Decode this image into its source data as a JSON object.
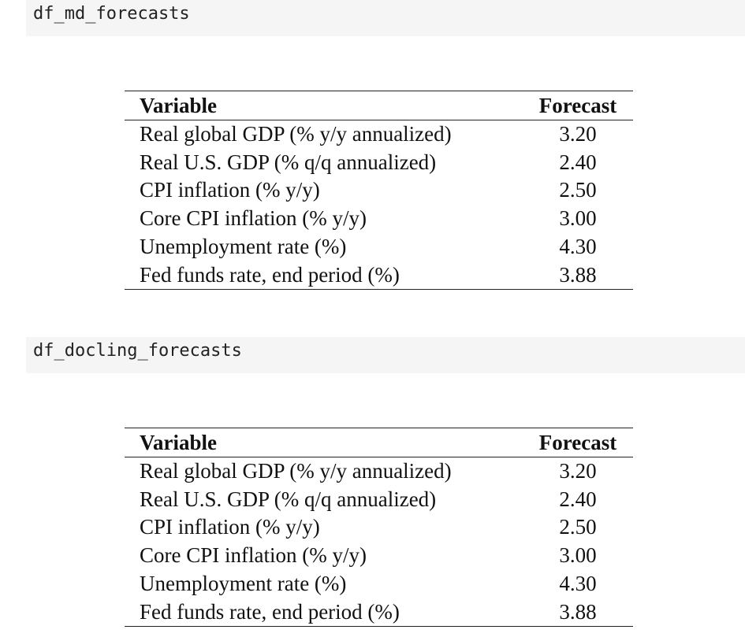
{
  "cells": [
    {
      "code": "df_md_forecasts",
      "table": {
        "columns": [
          "Variable",
          "Forecast"
        ],
        "rows": [
          [
            "Real global GDP (% y/y annualized)",
            "3.20"
          ],
          [
            "Real U.S. GDP (% q/q annualized)",
            "2.40"
          ],
          [
            "CPI inflation (% y/y)",
            "2.50"
          ],
          [
            "Core CPI inflation (% y/y)",
            "3.00"
          ],
          [
            "Unemployment rate (%)",
            "4.30"
          ],
          [
            "Fed funds rate, end period (%)",
            "3.88"
          ]
        ]
      }
    },
    {
      "code": "df_docling_forecasts",
      "table": {
        "columns": [
          "Variable",
          "Forecast"
        ],
        "rows": [
          [
            "Real global GDP (% y/y annualized)",
            "3.20"
          ],
          [
            "Real U.S. GDP (% q/q annualized)",
            "2.40"
          ],
          [
            "CPI inflation (% y/y)",
            "2.50"
          ],
          [
            "Core CPI inflation (% y/y)",
            "3.00"
          ],
          [
            "Unemployment rate (%)",
            "4.30"
          ],
          [
            "Fed funds rate, end period (%)",
            "3.88"
          ]
        ]
      }
    }
  ],
  "colors": {
    "code_background": "#f5f5f5",
    "rule": "#222222",
    "text": "#111111"
  }
}
